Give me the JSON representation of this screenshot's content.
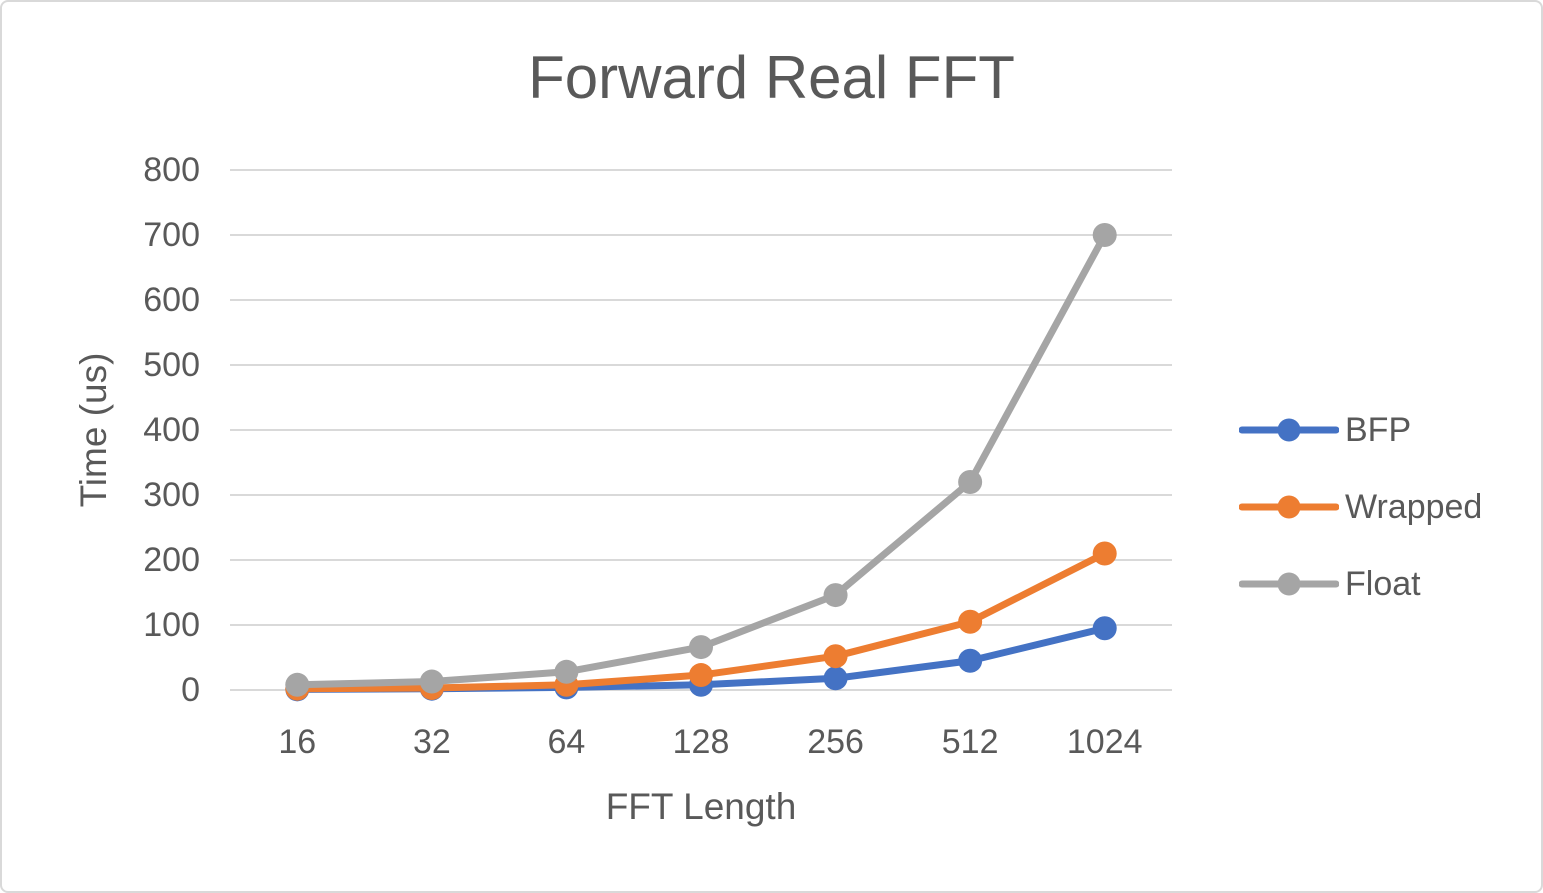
{
  "chart_data": {
    "type": "line",
    "title": "Forward Real FFT",
    "xlabel": "FFT Length",
    "ylabel": "Time (us)",
    "categories": [
      "16",
      "32",
      "64",
      "128",
      "256",
      "512",
      "1024"
    ],
    "series": [
      {
        "name": "BFP",
        "color": "#4472C4",
        "values": [
          1,
          2,
          4,
          8,
          18,
          45,
          95
        ]
      },
      {
        "name": "Wrapped",
        "color": "#ED7D31",
        "values": [
          2,
          3,
          8,
          23,
          52,
          105,
          210
        ]
      },
      {
        "name": "Float",
        "color": "#A5A5A5",
        "values": [
          8,
          13,
          28,
          66,
          146,
          320,
          700
        ]
      }
    ],
    "ylim": [
      0,
      800
    ],
    "yticks": [
      0,
      100,
      200,
      300,
      400,
      500,
      600,
      700,
      800
    ],
    "grid": true,
    "legend_position": "right",
    "marker": "circle"
  },
  "style": {
    "text_color": "#595959",
    "gridline_color": "#D9D9D9",
    "border_color": "#D9D9D9",
    "background": "#FFFFFF"
  }
}
